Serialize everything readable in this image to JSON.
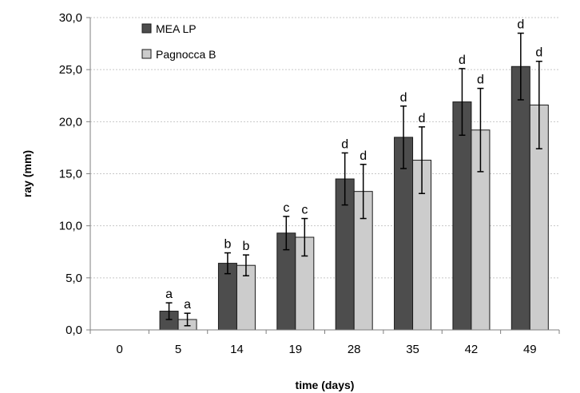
{
  "chart_data": {
    "type": "bar",
    "categories": [
      "0",
      "5",
      "14",
      "19",
      "28",
      "35",
      "42",
      "49"
    ],
    "series": [
      {
        "name": "MEA LP",
        "color": "#4d4d4d",
        "values": [
          0,
          1.8,
          6.4,
          9.3,
          14.5,
          18.5,
          21.9,
          25.3
        ],
        "error": [
          0,
          0.8,
          1.0,
          1.6,
          2.5,
          3.0,
          3.2,
          3.2
        ],
        "labels": [
          "",
          "a",
          "b",
          "c",
          "d",
          "d",
          "d",
          "d"
        ]
      },
      {
        "name": "Pagnocca B",
        "color": "#cccccc",
        "values": [
          0,
          1.0,
          6.2,
          8.9,
          13.3,
          16.3,
          19.2,
          21.6
        ],
        "error": [
          0,
          0.6,
          1.0,
          1.8,
          2.6,
          3.2,
          4.0,
          4.2
        ],
        "labels": [
          "",
          "a",
          "b",
          "c",
          "d",
          "d",
          "d",
          "d"
        ]
      }
    ],
    "y_ticks": [
      "0,0",
      "5,0",
      "10,0",
      "15,0",
      "20,0",
      "25,0",
      "30,0"
    ],
    "ylim": [
      0,
      30
    ],
    "xlabel": "time (days)",
    "ylabel": "ray (mm)",
    "grid": true,
    "legend_position": "top-left"
  }
}
